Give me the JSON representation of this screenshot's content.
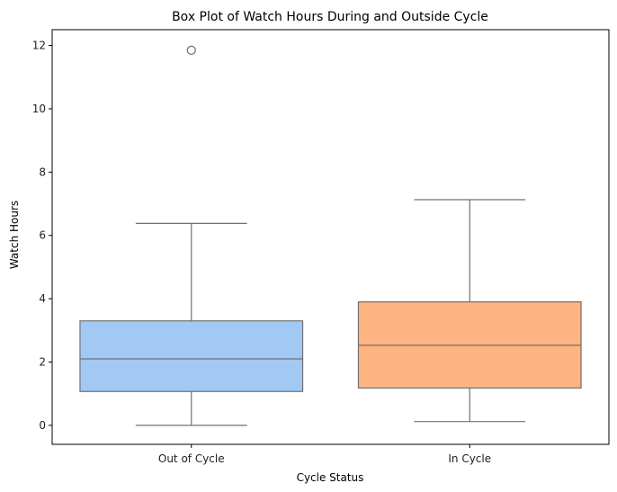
{
  "chart_data": {
    "type": "box",
    "title": "Box Plot of Watch Hours During and Outside Cycle",
    "xlabel": "Cycle Status",
    "ylabel": "Watch Hours",
    "categories": [
      "Out of Cycle",
      "In Cycle"
    ],
    "ylim": [
      -0.6,
      12.5
    ],
    "yticks": [
      0,
      2,
      4,
      6,
      8,
      10,
      12
    ],
    "grid": false,
    "boxes": [
      {
        "name": "Out of Cycle",
        "whisker_low": 0.0,
        "q1": 1.07,
        "median": 2.1,
        "q3": 3.3,
        "whisker_high": 6.38,
        "outliers": [
          11.85
        ],
        "color": "#a1c9f4"
      },
      {
        "name": "In Cycle",
        "whisker_low": 0.12,
        "q1": 1.18,
        "median": 2.53,
        "q3": 3.9,
        "whisker_high": 7.13,
        "outliers": [],
        "color": "#ffb482"
      }
    ]
  }
}
